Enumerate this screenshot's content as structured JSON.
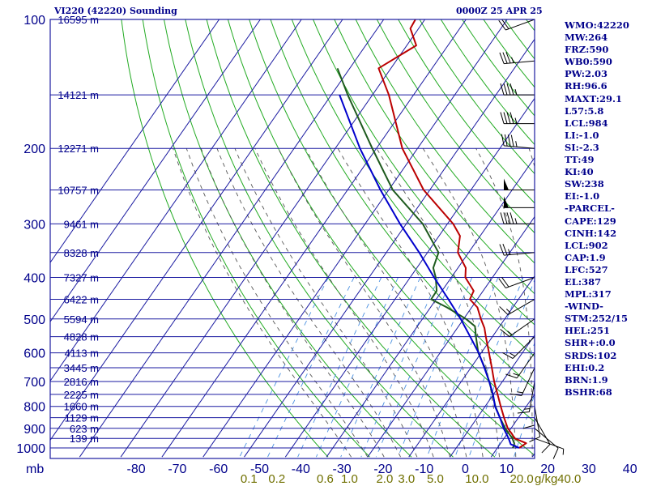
{
  "header": {
    "title": "VI220 (42220) Sounding",
    "time": "0000Z 25 APR 25"
  },
  "indices": [
    "WMO:42220",
    "MW:264",
    "FRZ:590",
    "WB0:590",
    "PW:2.03",
    "RH:96.6",
    "MAXT:29.1",
    "L57:5.8",
    "LCL:984",
    "LI:-1.0",
    "SI:-2.3",
    "TT:49",
    "KI:40",
    "SW:238",
    "EI:-1.0",
    "-PARCEL-",
    "CAPE:129",
    "CINH:142",
    "LCL:902",
    "CAP:1.9",
    "LFC:527",
    "EL:387",
    "MPL:317",
    "-WIND-",
    "STM:252/15",
    "HEL:251",
    "SHR+:0.0",
    "SRDS:102",
    "EHI:0.2",
    "BRN:1.9",
    "BSHR:68"
  ],
  "colors": {
    "isobar": "#1a1aa0",
    "isotherm": "#1a1aa0",
    "dry_adiabat": "#22aa22",
    "moist_adiabat": "#555555",
    "mixing_ratio": "#4a90e0",
    "temperature": "#bb0000",
    "dewpoint": "#1e5a1e",
    "parcel": "#0000cc",
    "labels": "#00008b",
    "mixing_labels": "#707000"
  },
  "chart_data": {
    "type": "line",
    "title": "VI220 (42220) Sounding",
    "xunit": "C",
    "xlim": [
      -80,
      0
    ],
    "pressure_ticks": [
      100,
      200,
      300,
      400,
      500,
      600,
      700,
      800,
      900,
      1000
    ],
    "pressure_lines": [
      100,
      150,
      200,
      250,
      300,
      350,
      400,
      450,
      500,
      550,
      600,
      650,
      700,
      750,
      800,
      850,
      900,
      950,
      1000
    ],
    "temp_ticks": [
      -80,
      -70,
      -60,
      -50,
      -40,
      -30,
      -20,
      -10,
      0,
      10,
      20,
      30,
      40
    ],
    "height_labels": [
      {
        "p": 100,
        "h": "16595 m"
      },
      {
        "p": 150,
        "h": "14121 m"
      },
      {
        "p": 200,
        "h": "12271 m"
      },
      {
        "p": 250,
        "h": "10757 m"
      },
      {
        "p": 300,
        "h": "9461 m"
      },
      {
        "p": 350,
        "h": "8328 m"
      },
      {
        "p": 400,
        "h": "7327 m"
      },
      {
        "p": 450,
        "h": "6422 m"
      },
      {
        "p": 500,
        "h": "5594 m"
      },
      {
        "p": 550,
        "h": "4828 m"
      },
      {
        "p": 600,
        "h": "4113 m"
      },
      {
        "p": 650,
        "h": "3445 m"
      },
      {
        "p": 700,
        "h": "2816 m"
      },
      {
        "p": 750,
        "h": "2225 m"
      },
      {
        "p": 800,
        "h": "1660 m"
      },
      {
        "p": 850,
        "h": "1129 m"
      },
      {
        "p": 900,
        "h": "623 m"
      },
      {
        "p": 950,
        "h": "139 m"
      }
    ],
    "mixing_ratio_labels": [
      {
        "w": 0.1,
        "label": "0.1"
      },
      {
        "w": 0.2,
        "label": "0.2"
      },
      {
        "w": 0.6,
        "label": "0.6"
      },
      {
        "w": 1.0,
        "label": "1.0"
      },
      {
        "w": 2.0,
        "label": "2.0"
      },
      {
        "w": 3.0,
        "label": "3.0"
      },
      {
        "w": 5.0,
        "label": "5.0"
      },
      {
        "w": 10.0,
        "label": "10.0"
      },
      {
        "w": 20.0,
        "label": "20.0"
      },
      {
        "w": 40.0,
        "label": "40.0"
      }
    ],
    "mixing_ratio_unit": "g/kg",
    "series": [
      {
        "key": "temperature",
        "points": [
          [
            1000,
            25.3
          ],
          [
            975,
            26.2
          ],
          [
            950,
            22.6
          ],
          [
            925,
            21.0
          ],
          [
            900,
            19.2
          ],
          [
            850,
            16.5
          ],
          [
            800,
            13.8
          ],
          [
            750,
            11.0
          ],
          [
            700,
            8.0
          ],
          [
            650,
            5.1
          ],
          [
            600,
            1.9
          ],
          [
            550,
            -1.6
          ],
          [
            525,
            -3.4
          ],
          [
            500,
            -5.8
          ],
          [
            470,
            -8.6
          ],
          [
            450,
            -11.8
          ],
          [
            430,
            -12.3
          ],
          [
            400,
            -16.6
          ],
          [
            380,
            -18.1
          ],
          [
            350,
            -22.6
          ],
          [
            320,
            -24.9
          ],
          [
            300,
            -28.6
          ],
          [
            250,
            -41.5
          ],
          [
            200,
            -53.7
          ],
          [
            150,
            -66.0
          ],
          [
            130,
            -73.0
          ],
          [
            115,
            -67.7
          ],
          [
            105,
            -72.0
          ],
          [
            100,
            -72.3
          ]
        ]
      },
      {
        "key": "dewpoint",
        "points": [
          [
            1000,
            23.7
          ],
          [
            990,
            23.7
          ],
          [
            975,
            23.3
          ],
          [
            950,
            22.0
          ],
          [
            925,
            20.3
          ],
          [
            900,
            18.6
          ],
          [
            850,
            15.5
          ],
          [
            800,
            12.5
          ],
          [
            750,
            9.8
          ],
          [
            700,
            6.8
          ],
          [
            650,
            3.4
          ],
          [
            600,
            -0.7
          ],
          [
            550,
            -4.0
          ],
          [
            520,
            -6.0
          ],
          [
            500,
            -9.4
          ],
          [
            470,
            -16.0
          ],
          [
            450,
            -21.2
          ],
          [
            430,
            -21.3
          ],
          [
            400,
            -23.8
          ],
          [
            380,
            -26.0
          ],
          [
            350,
            -27.3
          ],
          [
            300,
            -36.0
          ],
          [
            250,
            -49.0
          ],
          [
            200,
            -61.0
          ],
          [
            150,
            -76.0
          ],
          [
            130,
            -83.0
          ]
        ]
      },
      {
        "key": "parcel",
        "points": [
          [
            1000,
            25.3
          ],
          [
            980,
            22.6
          ],
          [
            950,
            21.1
          ],
          [
            900,
            18.2
          ],
          [
            850,
            15.5
          ],
          [
            800,
            12.4
          ],
          [
            750,
            9.9
          ],
          [
            700,
            6.8
          ],
          [
            650,
            3.3
          ],
          [
            600,
            -0.6
          ],
          [
            550,
            -5.4
          ],
          [
            500,
            -10.7
          ],
          [
            450,
            -17.0
          ],
          [
            400,
            -24.2
          ],
          [
            350,
            -32.0
          ],
          [
            300,
            -41.5
          ],
          [
            250,
            -52.0
          ],
          [
            200,
            -64.0
          ],
          [
            150,
            -78.0
          ]
        ]
      }
    ],
    "wind_barbs": [
      {
        "p": 100,
        "dir": 250,
        "spd": 20
      },
      {
        "p": 125,
        "dir": 265,
        "spd": 35
      },
      {
        "p": 150,
        "dir": 270,
        "spd": 45
      },
      {
        "p": 175,
        "dir": 270,
        "spd": 45
      },
      {
        "p": 200,
        "dir": 275,
        "spd": 45
      },
      {
        "p": 250,
        "dir": 270,
        "spd": 50
      },
      {
        "p": 275,
        "dir": 270,
        "spd": 50
      },
      {
        "p": 300,
        "dir": 270,
        "spd": 45
      },
      {
        "p": 350,
        "dir": 265,
        "spd": 25
      },
      {
        "p": 400,
        "dir": 250,
        "spd": 20
      },
      {
        "p": 450,
        "dir": 240,
        "spd": 15
      },
      {
        "p": 500,
        "dir": 235,
        "spd": 15
      },
      {
        "p": 550,
        "dir": 225,
        "spd": 15
      },
      {
        "p": 600,
        "dir": 215,
        "spd": 15
      },
      {
        "p": 650,
        "dir": 205,
        "spd": 15
      },
      {
        "p": 700,
        "dir": 190,
        "spd": 15
      },
      {
        "p": 750,
        "dir": 180,
        "spd": 10
      },
      {
        "p": 800,
        "dir": 170,
        "spd": 10
      },
      {
        "p": 850,
        "dir": 150,
        "spd": 10
      },
      {
        "p": 900,
        "dir": 130,
        "spd": 10
      },
      {
        "p": 950,
        "dir": 110,
        "spd": 5
      }
    ]
  }
}
